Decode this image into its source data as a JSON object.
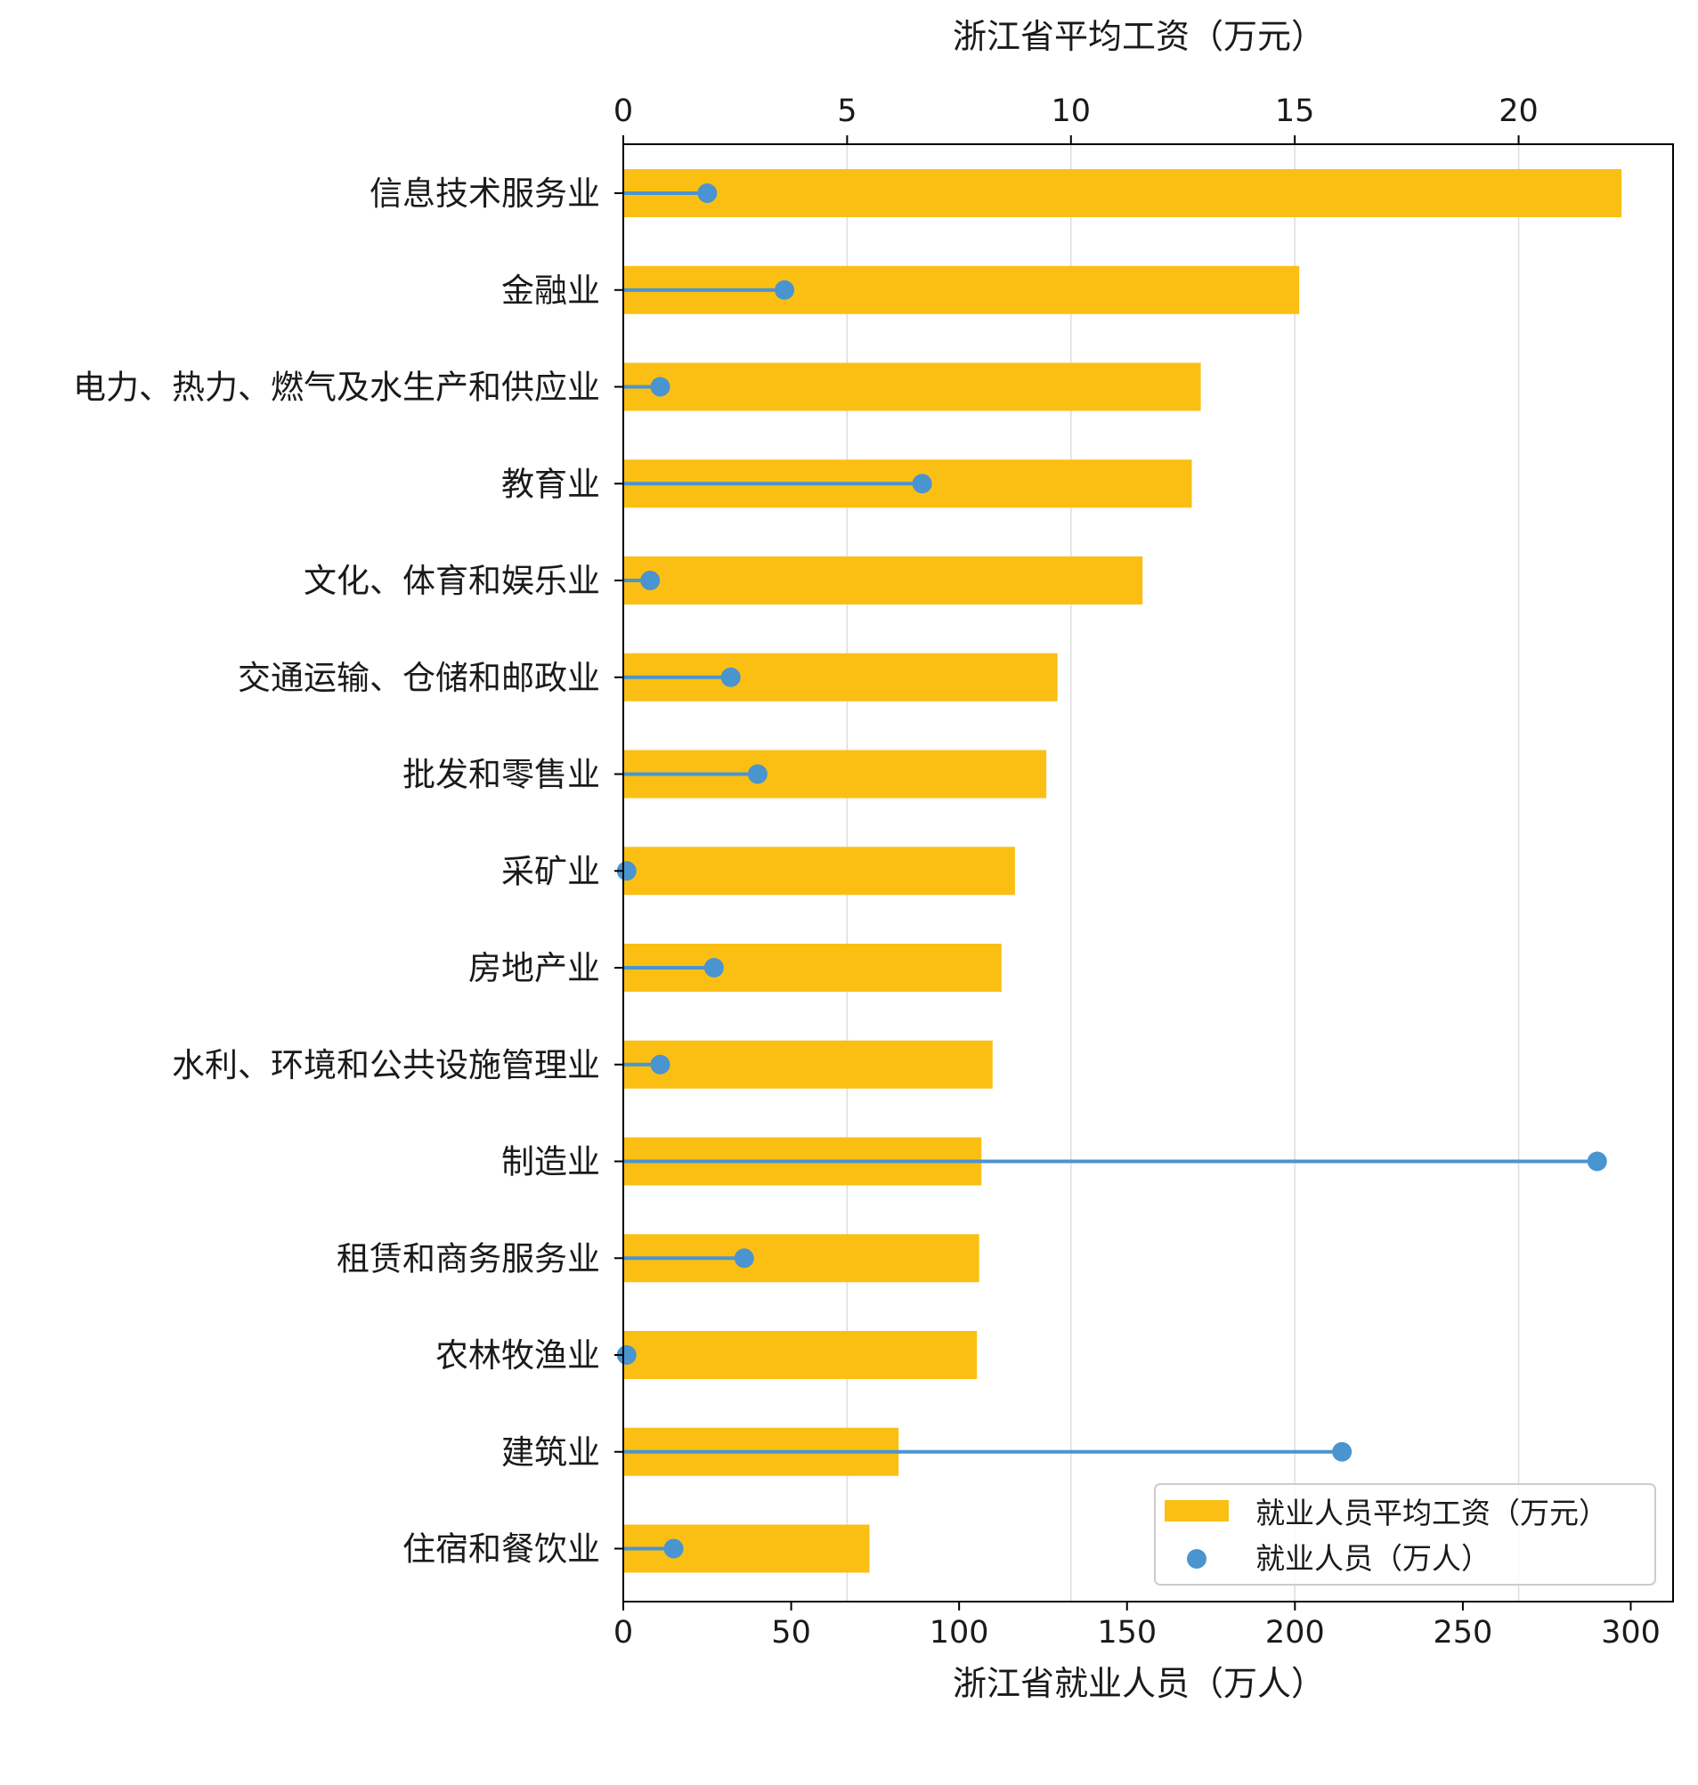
{
  "chart_data": {
    "type": "bar",
    "orientation": "horizontal",
    "categories": [
      "信息技术服务业",
      "金融业",
      "电力、热力、燃气及水生产和供应业",
      "教育业",
      "文化、体育和娱乐业",
      "交通运输、仓储和邮政业",
      "批发和零售业",
      "采矿业",
      "房地产业",
      "水利、环境和公共设施管理业",
      "制造业",
      "租赁和商务服务业",
      "农林牧渔业",
      "建筑业",
      "住宿和餐饮业"
    ],
    "series": [
      {
        "name": "就业人员平均工资（万元）",
        "type": "bar",
        "axis": "top",
        "color": "#FBBF14",
        "values": [
          22.3,
          15.1,
          12.9,
          12.7,
          11.6,
          9.7,
          9.45,
          8.75,
          8.45,
          8.25,
          8.0,
          7.95,
          7.9,
          6.15,
          5.5
        ]
      },
      {
        "name": "就业人员（万人）",
        "type": "lollipop",
        "axis": "bottom",
        "color": "#4A94CF",
        "values": [
          25,
          48,
          11,
          89,
          8,
          32,
          40,
          1,
          27,
          11,
          290,
          36,
          1,
          214,
          15
        ]
      }
    ],
    "top_axis": {
      "label": "浙江省平均工资（万元）",
      "range": [
        0,
        23.45
      ],
      "ticks": [
        0,
        5,
        10,
        15,
        20
      ]
    },
    "bottom_axis": {
      "label": "浙江省就业人员（万人）",
      "range": [
        0,
        312.6
      ],
      "ticks": [
        0,
        50,
        100,
        150,
        200,
        250,
        300
      ]
    },
    "grid": "vertical at top-axis ticks",
    "legend_position": "lower-right"
  }
}
